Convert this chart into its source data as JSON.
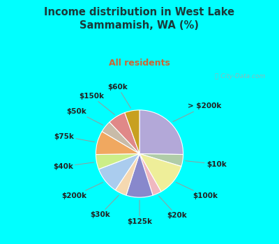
{
  "title": "Income distribution in West Lake\nSammamish, WA (%)",
  "subtitle": "All residents",
  "title_color": "#1a3a3a",
  "subtitle_color": "#cc6633",
  "bg_cyan": "#00ffff",
  "bg_chart": "#f0faf0",
  "watermark": "ⓘ City-Data.com",
  "slices": [
    {
      "label": "> $200k",
      "value": 23,
      "color": "#b3a8d8"
    },
    {
      "label": "$10k",
      "value": 4,
      "color": "#b0cca8"
    },
    {
      "label": "$100k",
      "value": 11,
      "color": "#eeee99"
    },
    {
      "label": "$20k",
      "value": 3,
      "color": "#f0b8c0"
    },
    {
      "label": "$125k",
      "value": 9,
      "color": "#8888cc"
    },
    {
      "label": "$30k",
      "value": 4,
      "color": "#f5d8b0"
    },
    {
      "label": "$200k",
      "value": 9,
      "color": "#aaccee"
    },
    {
      "label": "$40k",
      "value": 5,
      "color": "#ccee88"
    },
    {
      "label": "$75k",
      "value": 8,
      "color": "#f0a860"
    },
    {
      "label": "$50k",
      "value": 4,
      "color": "#c8bba8"
    },
    {
      "label": "$150k",
      "value": 6,
      "color": "#e08888"
    },
    {
      "label": "$60k",
      "value": 5,
      "color": "#c8a020"
    }
  ],
  "label_fontsize": 7.5,
  "label_color": "#222222",
  "figsize": [
    4.0,
    3.5
  ],
  "dpi": 100
}
